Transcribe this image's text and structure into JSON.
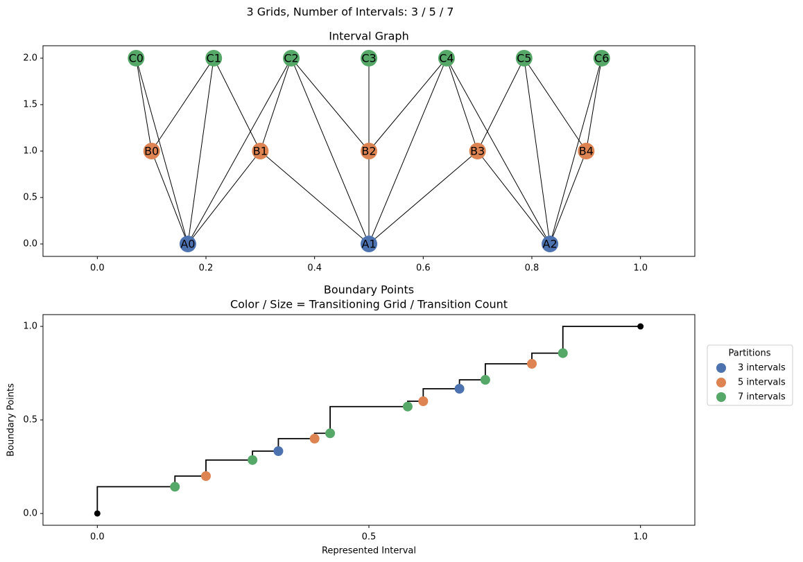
{
  "suptitle": "3 Grids, Number of Intervals: 3 / 5 / 7",
  "chart_data": [
    {
      "type": "graph",
      "title": "Interval Graph",
      "xlim": [
        -0.1,
        1.1
      ],
      "ylim": [
        -0.134,
        2.134
      ],
      "xticks": [
        {
          "value": 0,
          "label": "0.0"
        },
        0.2,
        0.4,
        0.6,
        0.8,
        {
          "value": 1,
          "label": "1.0"
        }
      ],
      "yticks": [
        {
          "value": 0,
          "label": "0.0"
        },
        0.5,
        {
          "value": 1,
          "label": "1.0"
        },
        1.5,
        {
          "value": 2,
          "label": "2.0"
        }
      ],
      "groups": [
        {
          "color": "#4c72b0",
          "nodes": [
            {
              "label": "A0",
              "x": 0.1667,
              "y": 0
            },
            {
              "label": "A1",
              "x": 0.5,
              "y": 0
            },
            {
              "label": "A2",
              "x": 0.8333,
              "y": 0
            }
          ]
        },
        {
          "color": "#dd8452",
          "nodes": [
            {
              "label": "B0",
              "x": 0.1,
              "y": 1
            },
            {
              "label": "B1",
              "x": 0.3,
              "y": 1
            },
            {
              "label": "B2",
              "x": 0.5,
              "y": 1
            },
            {
              "label": "B3",
              "x": 0.7,
              "y": 1
            },
            {
              "label": "B4",
              "x": 0.9,
              "y": 1
            }
          ]
        },
        {
          "color": "#55a868",
          "nodes": [
            {
              "label": "C0",
              "x": 0.0714,
              "y": 2
            },
            {
              "label": "C1",
              "x": 0.2143,
              "y": 2
            },
            {
              "label": "C2",
              "x": 0.3571,
              "y": 2
            },
            {
              "label": "C3",
              "x": 0.5,
              "y": 2
            },
            {
              "label": "C4",
              "x": 0.6429,
              "y": 2
            },
            {
              "label": "C5",
              "x": 0.7857,
              "y": 2
            },
            {
              "label": "C6",
              "x": 0.9286,
              "y": 2
            }
          ]
        }
      ],
      "edges": [
        [
          "A0",
          "B0"
        ],
        [
          "A0",
          "B1"
        ],
        [
          "A1",
          "B1"
        ],
        [
          "A1",
          "B2"
        ],
        [
          "A1",
          "B3"
        ],
        [
          "A2",
          "B3"
        ],
        [
          "A2",
          "B4"
        ],
        [
          "B0",
          "C0"
        ],
        [
          "B0",
          "C1"
        ],
        [
          "B1",
          "C1"
        ],
        [
          "B1",
          "C2"
        ],
        [
          "B2",
          "C2"
        ],
        [
          "B2",
          "C3"
        ],
        [
          "B2",
          "C4"
        ],
        [
          "B3",
          "C4"
        ],
        [
          "B3",
          "C5"
        ],
        [
          "B4",
          "C5"
        ],
        [
          "B4",
          "C6"
        ],
        [
          "A0",
          "C0"
        ],
        [
          "A0",
          "C1"
        ],
        [
          "A0",
          "C2"
        ],
        [
          "A1",
          "C2"
        ],
        [
          "A1",
          "C3"
        ],
        [
          "A1",
          "C4"
        ],
        [
          "A2",
          "C4"
        ],
        [
          "A2",
          "C5"
        ],
        [
          "A2",
          "C6"
        ]
      ]
    },
    {
      "type": "step-scatter",
      "title": [
        "Boundary Points",
        "Color / Size = Transitioning Grid / Transition Count"
      ],
      "x_label": "Represented Interval",
      "y_label": "Boundary Points",
      "xlim": [
        -0.1,
        1.1
      ],
      "ylim": [
        -0.063,
        1.063
      ],
      "xticks": [
        {
          "value": 0,
          "label": "0.0"
        },
        0.5,
        {
          "value": 1,
          "label": "1.0"
        }
      ],
      "yticks": [
        {
          "value": 0,
          "label": "0.0"
        },
        0.5,
        {
          "value": 1,
          "label": "1.0"
        }
      ],
      "step": {
        "color": "#000000",
        "x": [
          0,
          0.1429,
          0.2,
          0.2857,
          0.3333,
          0.4,
          0.4286,
          0.5714,
          0.6,
          0.6667,
          0.7143,
          0.8,
          0.8571,
          1
        ],
        "values": [
          0,
          0.1429,
          0.2,
          0.2857,
          0.3333,
          0.4,
          0.4286,
          0.5714,
          0.6,
          0.6667,
          0.7143,
          0.8,
          0.8571,
          1
        ]
      },
      "endpoints": {
        "color": "#000000",
        "x": [
          0,
          1
        ],
        "values": [
          0,
          1
        ]
      },
      "legend_title": "Partitions",
      "legend": "outside right",
      "series": [
        {
          "name": "3 intervals",
          "color": "#4c72b0",
          "x": [
            0.3333,
            0.6667
          ],
          "values": [
            0.3333,
            0.6667
          ]
        },
        {
          "name": "5 intervals",
          "color": "#dd8452",
          "x": [
            0.2,
            0.4,
            0.6,
            0.8
          ],
          "values": [
            0.2,
            0.4,
            0.6,
            0.8
          ]
        },
        {
          "name": "7 intervals",
          "color": "#55a868",
          "x": [
            0.1429,
            0.2857,
            0.4286,
            0.5714,
            0.7143,
            0.8571
          ],
          "values": [
            0.1429,
            0.2857,
            0.4286,
            0.5714,
            0.7143,
            0.8571
          ]
        }
      ]
    }
  ]
}
